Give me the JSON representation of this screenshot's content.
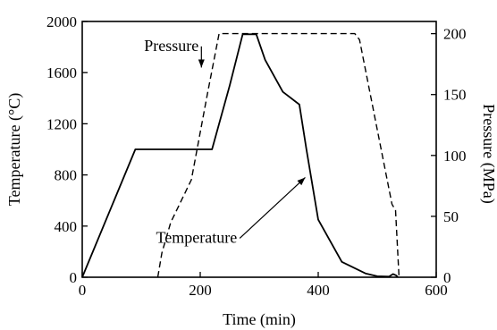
{
  "chart_data": {
    "type": "line",
    "title": "",
    "xlabel": "Time (min)",
    "ylabel_left": "Temperature (°C)",
    "ylabel_right": "Pressure (MPa)",
    "xlim": [
      0,
      600
    ],
    "ylim_left": [
      0,
      2000
    ],
    "ylim_right": [
      0,
      210
    ],
    "x_ticks": [
      0,
      200,
      400,
      600
    ],
    "y_left_ticks": [
      0,
      400,
      800,
      1200,
      1600,
      2000
    ],
    "y_right_ticks": [
      0,
      50,
      100,
      150,
      200
    ],
    "grid": false,
    "legend": "none",
    "series": [
      {
        "name": "Temperature",
        "axis": "left",
        "style": "solid",
        "x": [
          0,
          90,
          220,
          250,
          272,
          295,
          310,
          340,
          368,
          380,
          400,
          440,
          480,
          500,
          520,
          527,
          532,
          535
        ],
        "y": [
          0,
          1000,
          1000,
          1500,
          1900,
          1900,
          1700,
          1450,
          1350,
          1000,
          450,
          120,
          30,
          8,
          5,
          25,
          15,
          0
        ]
      },
      {
        "name": "Pressure",
        "axis": "right",
        "style": "dashed",
        "x": [
          128,
          135,
          150,
          185,
          212,
          232,
          462,
          470,
          525,
          531,
          537
        ],
        "y": [
          0,
          20,
          45,
          80,
          150,
          200,
          200,
          195,
          60,
          55,
          0
        ]
      }
    ],
    "annotations": [
      {
        "text": "Pressure",
        "x": 105,
        "y_left": 1770,
        "arrow_to_x": 202,
        "arrow_to_y_left": 1640
      },
      {
        "text": "Temperature",
        "x": 125,
        "y_left": 270,
        "arrow_to_x": 378,
        "arrow_to_y_left": 780
      }
    ]
  }
}
